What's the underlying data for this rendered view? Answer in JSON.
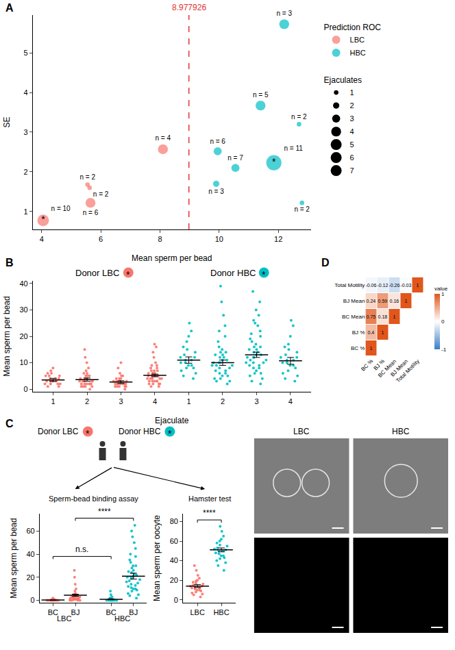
{
  "chart_data": [
    {
      "type": "scatter",
      "panel_label": "A",
      "xlabel": "Mean sperm per bead",
      "ylabel": "SE",
      "xlim": [
        3.7,
        13.1
      ],
      "xticks": [
        4,
        6,
        8,
        10,
        12
      ],
      "ylim": [
        0.55,
        5.95
      ],
      "yticks": [
        1,
        2,
        3,
        4,
        5
      ],
      "threshold": 8.977926,
      "legend_title": "Prediction ROC",
      "size_legend_title": "Ejaculates",
      "size_levels": [
        1,
        2,
        3,
        4,
        5,
        6,
        7
      ],
      "highlight_text": "*",
      "legend": "right",
      "series": [
        {
          "name": "LBC",
          "color": "#F8766D",
          "x": [
            4.05,
            5.55,
            5.62,
            5.65,
            8.1
          ],
          "y": [
            0.78,
            1.68,
            1.6,
            1.22,
            2.57
          ],
          "ejaculates": [
            5,
            1,
            1,
            4,
            4
          ],
          "labels": [
            "n = 10",
            "n = 2",
            "n = 2",
            "n = 6",
            "n = 4"
          ],
          "highlight": [
            true,
            false,
            false,
            false,
            false
          ]
        },
        {
          "name": "HBC",
          "color": "#00BFC4",
          "x": [
            9.9,
            9.95,
            10.55,
            11.4,
            11.85,
            12.2,
            12.7,
            12.8
          ],
          "y": [
            1.7,
            2.52,
            2.1,
            3.67,
            2.23,
            5.72,
            3.2,
            1.22
          ],
          "ejaculates": [
            2,
            3,
            3,
            4,
            7,
            4,
            1,
            1
          ],
          "labels": [
            "n = 3",
            "n = 6",
            "n = 7",
            "n = 5",
            "n = 11",
            "n = 3",
            "n = 2",
            "n = 2"
          ],
          "highlight": [
            false,
            false,
            false,
            false,
            true,
            false,
            false,
            false
          ]
        }
      ]
    },
    {
      "type": "strip",
      "panel_label": "B",
      "xlabel": "Ejaculate",
      "ylabel": "Mean sperm per bead",
      "ylim": [
        -1,
        41
      ],
      "yticks": [
        0,
        10,
        20,
        30,
        40
      ],
      "highlight_text": "*",
      "donors": [
        {
          "name": "Donor LBC",
          "color": "#F8766D",
          "ejaculates": [
            {
              "label": "1",
              "mean": 3.5,
              "se": 0.6,
              "values": [
                2,
                3,
                4,
                5,
                6,
                7,
                8,
                3,
                2,
                1,
                4,
                5,
                3,
                2,
                6,
                3,
                4,
                1,
                2,
                5
              ]
            },
            {
              "label": "2",
              "mean": 3.6,
              "se": 0.6,
              "values": [
                1,
                2,
                3,
                4,
                5,
                6,
                8,
                10,
                15,
                12,
                3,
                2,
                1,
                4,
                5,
                3,
                2,
                6,
                7,
                1,
                2,
                3,
                4,
                0,
                1,
                2,
                5,
                3,
                4,
                2
              ]
            },
            {
              "label": "3",
              "mean": 2.7,
              "se": 0.5,
              "values": [
                1,
                2,
                3,
                2,
                1,
                4,
                5,
                2,
                3,
                1,
                0,
                2,
                3,
                4,
                6,
                8,
                10,
                2,
                1,
                3,
                2,
                1,
                5,
                4,
                2
              ]
            },
            {
              "label": "4",
              "mean": 5.2,
              "se": 0.5,
              "values": [
                2,
                3,
                4,
                5,
                6,
                7,
                8,
                9,
                10,
                12,
                14,
                16,
                17,
                3,
                4,
                5,
                6,
                2,
                1,
                3,
                5,
                7,
                9,
                4,
                5,
                6,
                3,
                2,
                4,
                5,
                8,
                6,
                7,
                3,
                1,
                2,
                4,
                5
              ]
            }
          ]
        },
        {
          "name": "Donor HBC",
          "color": "#00BFC4",
          "ejaculates": [
            {
              "label": "1",
              "mean": 11,
              "se": 1.2,
              "values": [
                4,
                6,
                8,
                10,
                12,
                14,
                16,
                18,
                20,
                22,
                25,
                9,
                11,
                13,
                7,
                5,
                10,
                12,
                15,
                8,
                9,
                11
              ]
            },
            {
              "label": "2",
              "mean": 10,
              "se": 1,
              "values": [
                2,
                3,
                4,
                5,
                6,
                7,
                8,
                9,
                10,
                11,
                12,
                13,
                14,
                15,
                16,
                18,
                20,
                22,
                24,
                28,
                33,
                39,
                10,
                8,
                9,
                11,
                7,
                6,
                5,
                12,
                13,
                14,
                4,
                3,
                10,
                9
              ]
            },
            {
              "label": "3",
              "mean": 13,
              "se": 1,
              "values": [
                2,
                4,
                6,
                8,
                10,
                12,
                14,
                16,
                18,
                20,
                22,
                24,
                26,
                28,
                30,
                33,
                37,
                11,
                13,
                15,
                9,
                7,
                5,
                12,
                14,
                10,
                8,
                6,
                17,
                19,
                21,
                13,
                12,
                11,
                10,
                9,
                16,
                15,
                3,
                25
              ]
            },
            {
              "label": "4",
              "mean": 10.7,
              "se": 1.3,
              "values": [
                3,
                5,
                7,
                9,
                11,
                13,
                15,
                17,
                20,
                24,
                26,
                8,
                10,
                12,
                6,
                4,
                9,
                11,
                14,
                16,
                10,
                12
              ]
            }
          ]
        }
      ]
    },
    {
      "type": "strip",
      "panel_label": "C",
      "highlight_text": "*",
      "donors": [
        {
          "name": "Donor LBC",
          "short": "LBC",
          "color": "#F8766D"
        },
        {
          "name": "Donor HBC",
          "short": "HBC",
          "color": "#00BFC4"
        }
      ],
      "panels": [
        {
          "title": "Sperm-bead binding assay",
          "ylabel": "Mean sperm per bead",
          "ylim": [
            -2,
            75
          ],
          "yticks": [
            0,
            20,
            40,
            60
          ],
          "groups": [
            {
              "donor": "LBC",
              "conditions": [
                {
                  "label": "BC",
                  "mean": 0.3,
                  "se": 0.1,
                  "values": [
                    0,
                    0,
                    0,
                    0,
                    1,
                    0,
                    0,
                    1,
                    0,
                    0,
                    2,
                    0,
                    1,
                    0,
                    0,
                    1,
                    0,
                    0,
                    0,
                    1
                  ]
                },
                {
                  "label": "BJ",
                  "mean": 4.5,
                  "se": 0.9,
                  "values": [
                    0,
                    1,
                    2,
                    3,
                    4,
                    5,
                    6,
                    8,
                    10,
                    14,
                    20,
                    26,
                    2,
                    3,
                    1,
                    4,
                    5,
                    1,
                    3,
                    2,
                    0,
                    1,
                    2,
                    1,
                    0,
                    3,
                    2,
                    1,
                    0,
                    4
                  ]
                }
              ]
            },
            {
              "donor": "HBC",
              "conditions": [
                {
                  "label": "BC",
                  "mean": 1,
                  "se": 0.4,
                  "values": [
                    0,
                    0,
                    1,
                    0,
                    2,
                    1,
                    0,
                    0,
                    3,
                    5,
                    8,
                    1,
                    0,
                    2,
                    1,
                    0,
                    0,
                    1
                  ]
                },
                {
                  "label": "BJ",
                  "mean": 21,
                  "se": 2.5,
                  "values": [
                    2,
                    5,
                    8,
                    10,
                    12,
                    15,
                    18,
                    20,
                    22,
                    25,
                    28,
                    30,
                    35,
                    40,
                    45,
                    50,
                    55,
                    60,
                    65,
                    10,
                    14,
                    16,
                    19,
                    21,
                    24,
                    17,
                    13,
                    11,
                    9,
                    6,
                    4,
                    30,
                    33,
                    38,
                    26,
                    23,
                    20
                  ]
                }
              ]
            }
          ],
          "comparisons": [
            {
              "pair": [
                0,
                2
              ],
              "text": "n.s."
            },
            {
              "pair": [
                1,
                3
              ],
              "text": "****"
            }
          ]
        },
        {
          "title": "Hamster test",
          "ylabel": "Mean sperm per oocyte",
          "ylim": [
            -3,
            88
          ],
          "yticks": [
            0,
            20,
            40,
            60,
            80
          ],
          "groups": [
            {
              "donor": "LBC",
              "mean": 14,
              "se": 1.5,
              "values": [
                3,
                5,
                7,
                9,
                10,
                11,
                12,
                13,
                14,
                15,
                16,
                17,
                18,
                20,
                22,
                25,
                30,
                35,
                8,
                12,
                14,
                10,
                6,
                19
              ]
            },
            {
              "donor": "HBC",
              "mean": 51,
              "se": 2,
              "values": [
                30,
                35,
                38,
                40,
                42,
                45,
                48,
                50,
                52,
                55,
                58,
                60,
                62,
                65,
                70,
                75,
                45,
                50,
                53,
                47,
                56,
                43,
                51
              ]
            }
          ],
          "comparisons": [
            {
              "pair": [
                0,
                1
              ],
              "text": "****"
            }
          ]
        }
      ],
      "image_labels": [
        "LBC",
        "HBC"
      ]
    },
    {
      "type": "heatmap",
      "panel_label": "D",
      "categories": [
        "BC %",
        "BJ %",
        "BC Mean",
        "BJ Mean",
        "Total Motility"
      ],
      "values": [
        [
          1
        ],
        [
          0.4,
          1
        ],
        [
          0.75,
          0.18,
          1
        ],
        [
          0.24,
          0.59,
          0.16,
          1
        ],
        [
          -0.06,
          -0.12,
          -0.26,
          -0.03,
          1
        ]
      ],
      "colorbar_title": "value",
      "colorbar_range": [
        -1,
        1
      ],
      "colorbar_ticks": [
        -1,
        0,
        1
      ]
    }
  ]
}
